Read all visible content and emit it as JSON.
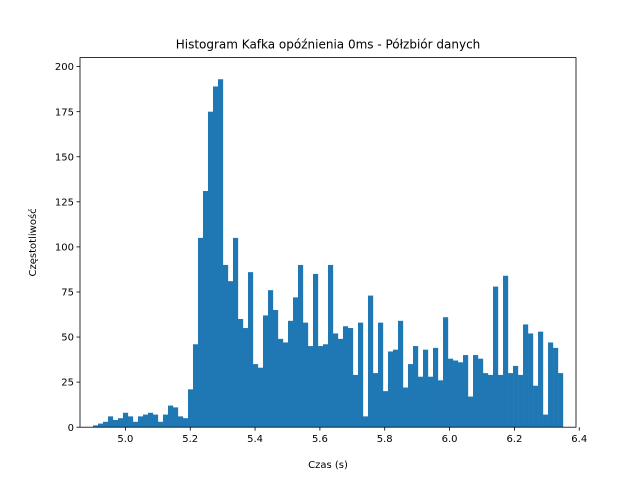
{
  "chart_data": {
    "type": "bar",
    "subtype": "histogram",
    "title": "Histogram Kafka opóźnienia  0ms - Półzbiór danych",
    "xlabel": "Czas (s)",
    "ylabel": "Częstotliwość",
    "xlim": [
      4.86,
      6.39
    ],
    "ylim": [
      0,
      205
    ],
    "xticks": [
      5.0,
      5.2,
      5.4,
      5.6,
      5.8,
      6.0,
      6.2,
      6.4
    ],
    "xtick_labels": [
      "5.0",
      "5.2",
      "5.4",
      "5.6",
      "5.8",
      "6.0",
      "6.2",
      "6.4"
    ],
    "yticks": [
      0,
      25,
      50,
      75,
      100,
      125,
      150,
      175,
      200
    ],
    "ytick_labels": [
      "0",
      "25",
      "50",
      "75",
      "100",
      "125",
      "150",
      "175",
      "200"
    ],
    "color": "#1f77b4",
    "bin_start": 4.9,
    "bin_end": 6.35,
    "counts": [
      1,
      2,
      3,
      6,
      4,
      5,
      8,
      6,
      3,
      6,
      7,
      8,
      7,
      3,
      7,
      12,
      11,
      6,
      5,
      21,
      46,
      105,
      131,
      175,
      189,
      193,
      90,
      81,
      105,
      60,
      55,
      86,
      35,
      33,
      62,
      76,
      65,
      49,
      47,
      59,
      72,
      90,
      58,
      45,
      85,
      45,
      46,
      90,
      52,
      49,
      56,
      55,
      29,
      58,
      6,
      73,
      30,
      58,
      20,
      42,
      43,
      59,
      22,
      35,
      45,
      28,
      43,
      28,
      44,
      26,
      61,
      38,
      37,
      36,
      40,
      17,
      40,
      38,
      30,
      29,
      78,
      29,
      84,
      30,
      34,
      29,
      57,
      52,
      23,
      53,
      7,
      47,
      44,
      30
    ]
  }
}
